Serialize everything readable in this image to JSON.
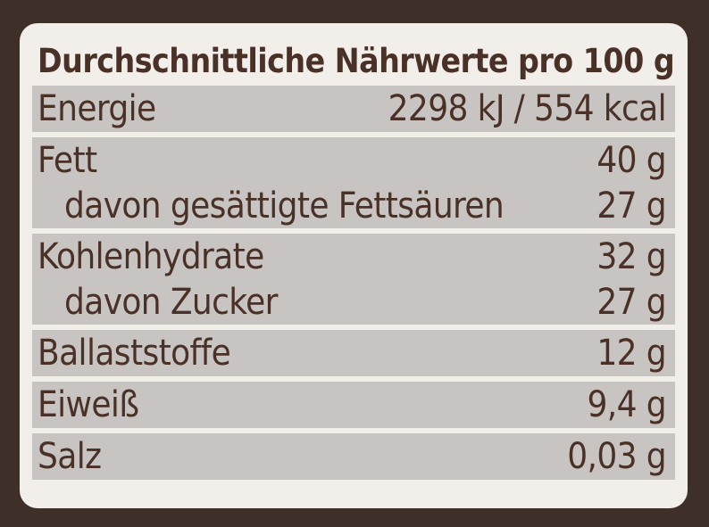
{
  "title": "Durchschnittliche Nährwerte pro 100 g",
  "rows": [
    {
      "label": "Energie",
      "value": "2298 kJ / 554 kcal"
    },
    {
      "label": "Fett",
      "value": "40 g",
      "sub_label": "davon gesättigte Fettsäuren",
      "sub_value": "27 g"
    },
    {
      "label": "Kohlenhydrate",
      "value": "32 g",
      "sub_label": "davon Zucker",
      "sub_value": "27 g"
    },
    {
      "label": "Ballaststoffe",
      "value": "12 g"
    },
    {
      "label": "Eiweiß",
      "value": "9,4 g"
    },
    {
      "label": "Salz",
      "value": "0,03 g"
    }
  ],
  "colors": {
    "background": "#3f2f29",
    "card": "#f2efea",
    "row": "#c7c4c1",
    "text": "#4a3128"
  }
}
